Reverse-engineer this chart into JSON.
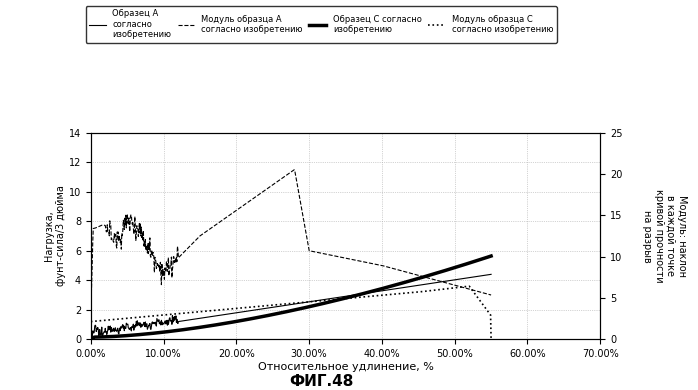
{
  "title": "ФИГ.48",
  "xlabel": "Относительное удлинение, %",
  "ylabel_left": "Нагрузка,\nфунт-сила/3 дюйма",
  "ylabel_right": "Модуль: наклон\nв каждой точке\nкривой прочности\nна разрыв",
  "xlim": [
    0.0,
    0.7
  ],
  "ylim_left": [
    0,
    14
  ],
  "ylim_right": [
    0,
    25
  ],
  "yticks_left": [
    0,
    2,
    4,
    6,
    8,
    10,
    12,
    14
  ],
  "yticks_right": [
    0,
    5,
    10,
    15,
    20,
    25
  ],
  "xticks": [
    0.0,
    0.1,
    0.2,
    0.3,
    0.4,
    0.5,
    0.6,
    0.7
  ],
  "xtick_labels": [
    "0.00%",
    "10.00%",
    "20.00%",
    "30.00%",
    "40.00%",
    "50.00%",
    "60.00%",
    "70.00%"
  ],
  "legend_labels": [
    "Образец А\nсогласно\nизобретению",
    "Модуль образца А\nсогласно изобретению",
    "Образец С согласно\nизобретению",
    "Модуль образца С\nсогласно изобретению"
  ],
  "bg_color": "#ffffff",
  "line_color": "#000000"
}
